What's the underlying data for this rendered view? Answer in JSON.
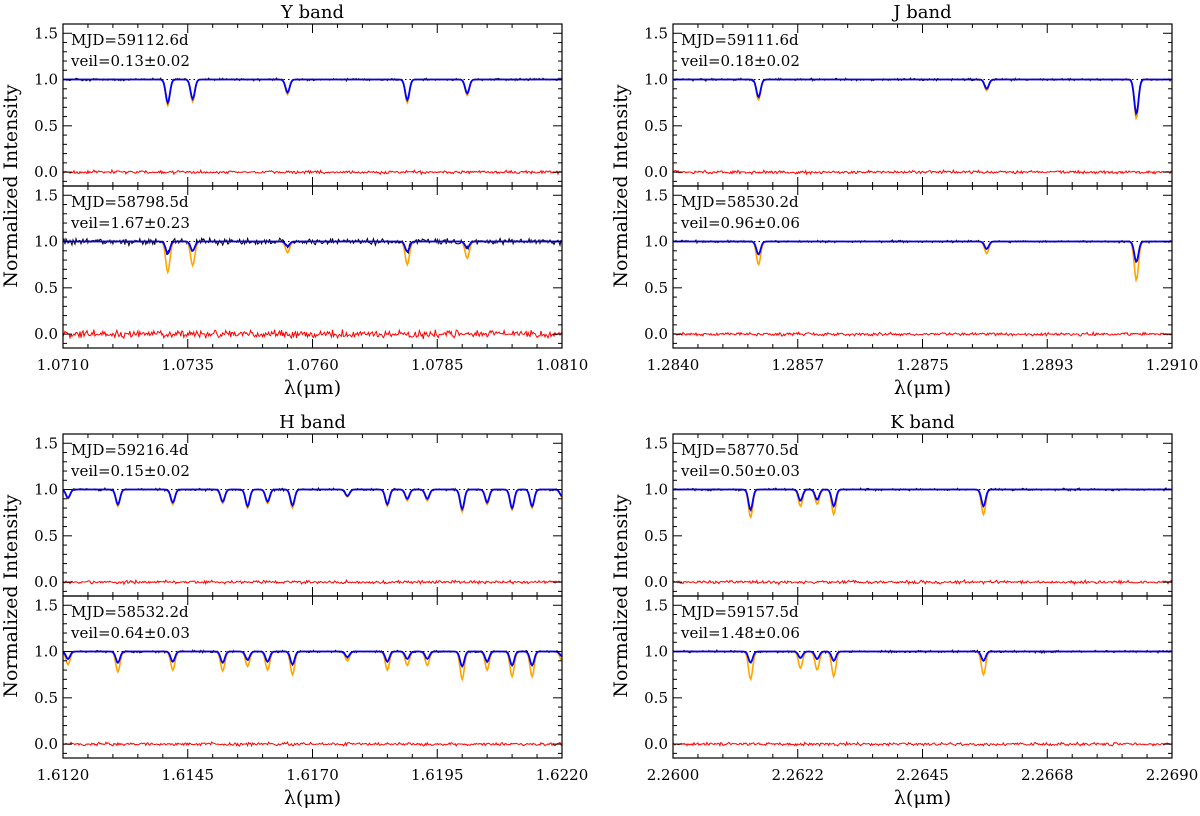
{
  "chart_data": [
    {
      "type": "line",
      "title": "Y band",
      "xlabel": "λ(μm)",
      "ylabel": "Normalized Intensity",
      "xlim": [
        1.071,
        1.081
      ],
      "xticks": [
        "1.0710",
        "1.0735",
        "1.0760",
        "1.0785",
        "1.0810"
      ],
      "ylim": [
        -0.15,
        1.6
      ],
      "yticks": [
        "0.0",
        "0.5",
        "1.0",
        "1.5"
      ],
      "panels": [
        {
          "label": "MJD=59112.6d",
          "veil_text": "veil=0.13±0.02",
          "veil": 0.13,
          "lines": [
            {
              "x": 1.0731,
              "orange": 0.28,
              "blue": 0.25
            },
            {
              "x": 1.0736,
              "orange": 0.24,
              "blue": 0.21
            },
            {
              "x": 1.0755,
              "orange": 0.16,
              "blue": 0.14
            },
            {
              "x": 1.0779,
              "orange": 0.25,
              "blue": 0.22
            },
            {
              "x": 1.0791,
              "orange": 0.17,
              "blue": 0.15
            }
          ]
        },
        {
          "label": "MJD=58798.5d",
          "veil_text": "veil=1.67±0.23",
          "veil": 1.67,
          "lines": [
            {
              "x": 1.0731,
              "orange": 0.33,
              "blue": 0.13
            },
            {
              "x": 1.0736,
              "orange": 0.26,
              "blue": 0.1
            },
            {
              "x": 1.0755,
              "orange": 0.12,
              "blue": 0.05
            },
            {
              "x": 1.0779,
              "orange": 0.25,
              "blue": 0.11
            },
            {
              "x": 1.0791,
              "orange": 0.18,
              "blue": 0.07
            }
          ]
        }
      ]
    },
    {
      "type": "line",
      "title": "J band",
      "xlabel": "λ(μm)",
      "ylabel": "Normalized Intensity",
      "xlim": [
        1.284,
        1.291
      ],
      "xticks": [
        "1.2840",
        "1.2857",
        "1.2875",
        "1.2893",
        "1.2910"
      ],
      "ylim": [
        -0.15,
        1.6
      ],
      "yticks": [
        "0.0",
        "0.5",
        "1.0",
        "1.5"
      ],
      "panels": [
        {
          "label": "MJD=59111.6d",
          "veil_text": "veil=0.18±0.02",
          "veil": 0.18,
          "lines": [
            {
              "x": 1.2852,
              "orange": 0.22,
              "blue": 0.19
            },
            {
              "x": 1.2884,
              "orange": 0.12,
              "blue": 0.1
            },
            {
              "x": 1.2905,
              "orange": 0.42,
              "blue": 0.37
            }
          ]
        },
        {
          "label": "MJD=58530.2d",
          "veil_text": "veil=0.96±0.06",
          "veil": 0.96,
          "lines": [
            {
              "x": 1.2852,
              "orange": 0.25,
              "blue": 0.14
            },
            {
              "x": 1.2884,
              "orange": 0.13,
              "blue": 0.08
            },
            {
              "x": 1.2905,
              "orange": 0.42,
              "blue": 0.22
            }
          ]
        }
      ]
    },
    {
      "type": "line",
      "title": "H band",
      "xlabel": "λ(μm)",
      "ylabel": "Normalized Intensity",
      "xlim": [
        1.612,
        1.622
      ],
      "xticks": [
        "1.6120",
        "1.6145",
        "1.6170",
        "1.6195",
        "1.6220"
      ],
      "ylim": [
        -0.15,
        1.6
      ],
      "yticks": [
        "0.0",
        "0.5",
        "1.0",
        "1.5"
      ],
      "panels": [
        {
          "label": "MJD=59216.4d",
          "veil_text": "veil=0.15±0.02",
          "veil": 0.15,
          "lines": [
            {
              "x": 1.6121,
              "orange": 0.1,
              "blue": 0.09
            },
            {
              "x": 1.6131,
              "orange": 0.18,
              "blue": 0.16
            },
            {
              "x": 1.6142,
              "orange": 0.16,
              "blue": 0.14
            },
            {
              "x": 1.6152,
              "orange": 0.15,
              "blue": 0.13
            },
            {
              "x": 1.6157,
              "orange": 0.2,
              "blue": 0.18
            },
            {
              "x": 1.6161,
              "orange": 0.15,
              "blue": 0.13
            },
            {
              "x": 1.6166,
              "orange": 0.2,
              "blue": 0.17
            },
            {
              "x": 1.6177,
              "orange": 0.08,
              "blue": 0.07
            },
            {
              "x": 1.6185,
              "orange": 0.18,
              "blue": 0.16
            },
            {
              "x": 1.6189,
              "orange": 0.12,
              "blue": 0.1
            },
            {
              "x": 1.6193,
              "orange": 0.12,
              "blue": 0.1
            },
            {
              "x": 1.62,
              "orange": 0.24,
              "blue": 0.21
            },
            {
              "x": 1.6205,
              "orange": 0.16,
              "blue": 0.14
            },
            {
              "x": 1.621,
              "orange": 0.22,
              "blue": 0.2
            },
            {
              "x": 1.6214,
              "orange": 0.2,
              "blue": 0.18
            },
            {
              "x": 1.622,
              "orange": 0.08,
              "blue": 0.07
            }
          ]
        },
        {
          "label": "MJD=58532.2d",
          "veil_text": "veil=0.64±0.03",
          "veil": 0.64,
          "lines": [
            {
              "x": 1.6121,
              "orange": 0.14,
              "blue": 0.08
            },
            {
              "x": 1.6131,
              "orange": 0.22,
              "blue": 0.12
            },
            {
              "x": 1.6142,
              "orange": 0.2,
              "blue": 0.11
            },
            {
              "x": 1.6152,
              "orange": 0.21,
              "blue": 0.12
            },
            {
              "x": 1.6157,
              "orange": 0.16,
              "blue": 0.09
            },
            {
              "x": 1.6161,
              "orange": 0.2,
              "blue": 0.11
            },
            {
              "x": 1.6166,
              "orange": 0.25,
              "blue": 0.14
            },
            {
              "x": 1.6177,
              "orange": 0.1,
              "blue": 0.06
            },
            {
              "x": 1.6185,
              "orange": 0.2,
              "blue": 0.11
            },
            {
              "x": 1.6189,
              "orange": 0.15,
              "blue": 0.08
            },
            {
              "x": 1.6193,
              "orange": 0.15,
              "blue": 0.08
            },
            {
              "x": 1.62,
              "orange": 0.3,
              "blue": 0.16
            },
            {
              "x": 1.6205,
              "orange": 0.2,
              "blue": 0.11
            },
            {
              "x": 1.621,
              "orange": 0.27,
              "blue": 0.15
            },
            {
              "x": 1.6214,
              "orange": 0.27,
              "blue": 0.15
            },
            {
              "x": 1.622,
              "orange": 0.1,
              "blue": 0.05
            }
          ]
        }
      ]
    },
    {
      "type": "line",
      "title": "K band",
      "xlabel": "λ(μm)",
      "ylabel": "Normalized Intensity",
      "xlim": [
        2.26,
        2.269
      ],
      "xticks": [
        "2.2600",
        "2.2622",
        "2.2645",
        "2.2668",
        "2.2690"
      ],
      "ylim": [
        -0.15,
        1.6
      ],
      "yticks": [
        "0.0",
        "0.5",
        "1.0",
        "1.5"
      ],
      "panels": [
        {
          "label": "MJD=58770.5d",
          "veil_text": "veil=0.50±0.03",
          "veil": 0.5,
          "lines": [
            {
              "x": 2.2614,
              "orange": 0.3,
              "blue": 0.22
            },
            {
              "x": 2.2623,
              "orange": 0.18,
              "blue": 0.12
            },
            {
              "x": 2.2626,
              "orange": 0.16,
              "blue": 0.11
            },
            {
              "x": 2.2629,
              "orange": 0.27,
              "blue": 0.18
            },
            {
              "x": 2.2656,
              "orange": 0.27,
              "blue": 0.18
            }
          ]
        },
        {
          "label": "MJD=59157.5d",
          "veil_text": "veil=1.48±0.06",
          "veil": 1.48,
          "lines": [
            {
              "x": 2.2614,
              "orange": 0.3,
              "blue": 0.12
            },
            {
              "x": 2.2623,
              "orange": 0.18,
              "blue": 0.07
            },
            {
              "x": 2.2626,
              "orange": 0.2,
              "blue": 0.08
            },
            {
              "x": 2.2629,
              "orange": 0.27,
              "blue": 0.1
            },
            {
              "x": 2.2656,
              "orange": 0.25,
              "blue": 0.1
            }
          ]
        }
      ]
    }
  ],
  "colors": {
    "observed": "#000000",
    "model_unveiled": "#ffa500",
    "model_veiled": "#0000ff",
    "residual": "#ff0000",
    "continuum_dotted": "#000000"
  }
}
